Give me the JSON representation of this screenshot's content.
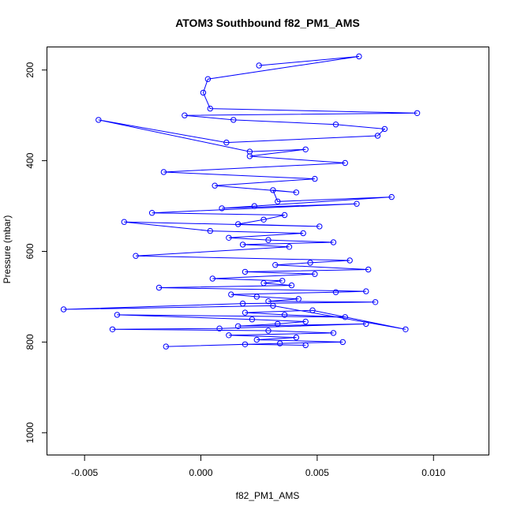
{
  "chart_data": {
    "type": "scatter",
    "title": "ATOM3 Southbound f82_PM1_AMS",
    "xlabel": "f82_PM1_AMS",
    "ylabel": "Pressure (mbar)",
    "xlim": [
      -0.0066,
      0.0124
    ],
    "ylim": [
      1050,
      150
    ],
    "y_reversed": true,
    "x_ticks": [
      -0.005,
      0.0,
      0.005,
      0.01
    ],
    "x_tick_labels": [
      "-0.005",
      "0.000",
      "0.005",
      "0.010"
    ],
    "y_ticks": [
      200,
      400,
      600,
      800,
      1000
    ],
    "y_tick_labels": [
      "200",
      "400",
      "600",
      "800",
      "1000"
    ],
    "grid": false,
    "marker": "open-circle",
    "line_connected": true,
    "color": "#0000ff",
    "series": [
      {
        "x": [
          0.0025,
          0.0068,
          0.0003,
          0.0001,
          0.0004,
          0.0093,
          -0.0007,
          0.0014,
          0.0058,
          0.0079,
          0.0076,
          0.0011,
          -0.0044,
          0.0021,
          0.0045,
          0.0021,
          0.0062,
          -0.0016,
          0.0049,
          0.0006,
          0.0041,
          0.0031,
          0.0033,
          0.0082,
          0.0023,
          0.0009,
          0.0067,
          -0.0021,
          0.0036,
          0.0027,
          0.0016,
          0.0051,
          -0.0033,
          0.0004,
          0.0044,
          0.0012,
          0.0029,
          0.0057,
          0.0018,
          0.0038,
          -0.0028,
          0.0064,
          0.0047,
          0.0032,
          0.0072,
          0.0019,
          0.0049,
          0.0005,
          0.0035,
          0.0027,
          0.0039,
          -0.0018,
          0.0071,
          0.0058,
          0.0013,
          0.0024,
          0.0042,
          0.0029,
          0.0075,
          0.0018,
          -0.0059,
          0.0031,
          0.0088,
          0.0048,
          0.0019,
          0.0036,
          0.0062,
          -0.0036,
          0.0022,
          0.0045,
          0.0033,
          0.0016,
          0.0071,
          0.0008,
          -0.0038,
          0.0029,
          0.0057,
          0.0012,
          0.0041,
          0.0024,
          0.0061,
          0.0034,
          -0.0015,
          0.0019,
          0.0045
        ],
        "y": [
          190,
          170,
          220,
          250,
          285,
          295,
          300,
          310,
          320,
          330,
          345,
          360,
          310,
          380,
          375,
          390,
          405,
          425,
          440,
          455,
          470,
          465,
          490,
          480,
          500,
          505,
          495,
          515,
          520,
          530,
          540,
          545,
          535,
          555,
          560,
          570,
          575,
          580,
          585,
          590,
          610,
          620,
          625,
          630,
          640,
          645,
          650,
          660,
          665,
          670,
          675,
          680,
          688,
          690,
          695,
          700,
          705,
          710,
          712,
          715,
          728,
          720,
          772,
          730,
          735,
          740,
          745,
          740,
          750,
          755,
          760,
          765,
          760,
          770,
          772,
          775,
          780,
          785,
          790,
          795,
          800,
          803,
          810,
          805,
          807
        ]
      }
    ]
  }
}
